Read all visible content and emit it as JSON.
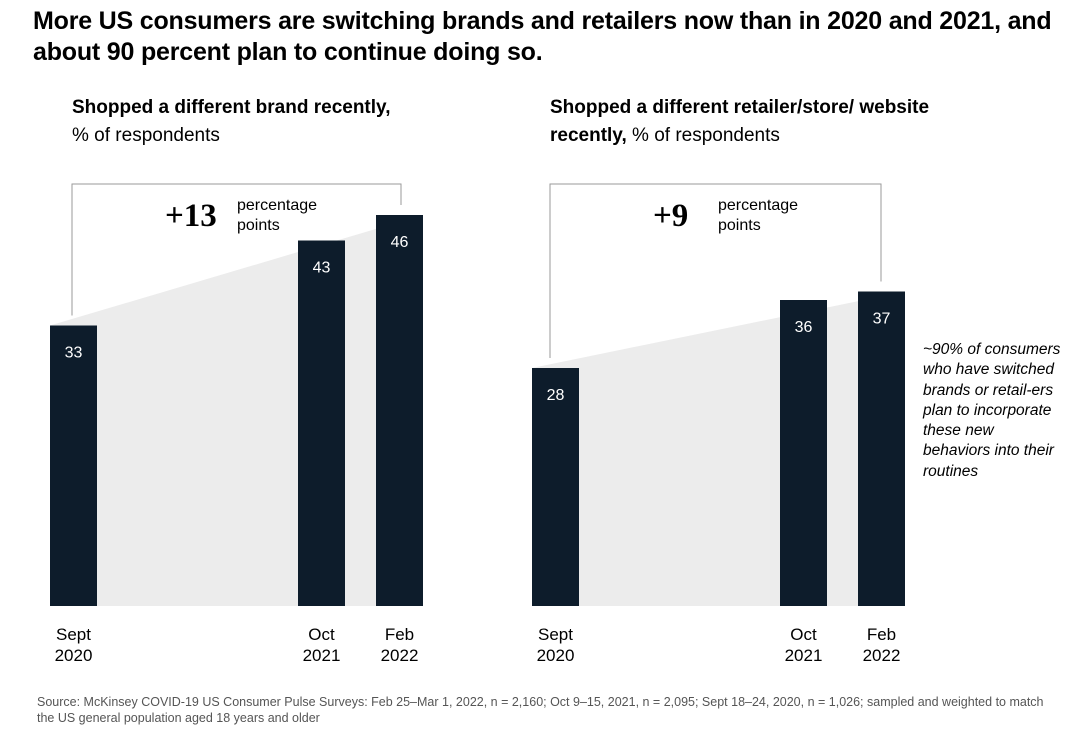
{
  "title": "More US consumers are switching brands and retailers now than in 2020 and 2021, and about 90 percent plan to continue doing so.",
  "chart_data": [
    {
      "type": "bar",
      "title_bold": "Shopped a different brand recently,",
      "title_normal": "% of respondents",
      "categories": [
        "Sept 2020",
        "Oct 2021",
        "Feb 2022"
      ],
      "category_lines": [
        [
          "Sept",
          "2020"
        ],
        [
          "Oct",
          "2021"
        ],
        [
          "Feb",
          "2022"
        ]
      ],
      "values": [
        33,
        43,
        46
      ],
      "value_labels": [
        "33",
        "43",
        "46"
      ],
      "ylim": [
        0,
        55
      ],
      "change_value": "+13",
      "change_label": [
        "percentage",
        "points"
      ],
      "bar_color": "#0d1c2b",
      "band_color": "#ececec"
    },
    {
      "type": "bar",
      "title_bold": "Shopped a different retailer/store/ website recently,",
      "title_normal": "% of respondents",
      "categories": [
        "Sept 2020",
        "Oct 2021",
        "Feb 2022"
      ],
      "category_lines": [
        [
          "Sept",
          "2020"
        ],
        [
          "Oct",
          "2021"
        ],
        [
          "Feb",
          "2022"
        ]
      ],
      "values": [
        28,
        36,
        37
      ],
      "value_labels": [
        "28",
        "36",
        "37"
      ],
      "ylim": [
        0,
        55
      ],
      "change_value": "+9",
      "change_label": [
        "percentage",
        "points"
      ],
      "bar_color": "#0d1c2b",
      "band_color": "#ececec"
    }
  ],
  "note": "~90% of consumers who have switched brands or retail-ers plan to incorporate these new behaviors into their routines",
  "source": "Source: McKinsey COVID-19 US Consumer Pulse Surveys: Feb 25–Mar 1, 2022, n = 2,160; Oct 9–15, 2021, n = 2,095; Sept 18–24, 2020, n = 1,026; sampled and weighted to match the US general population aged 18 years and older"
}
